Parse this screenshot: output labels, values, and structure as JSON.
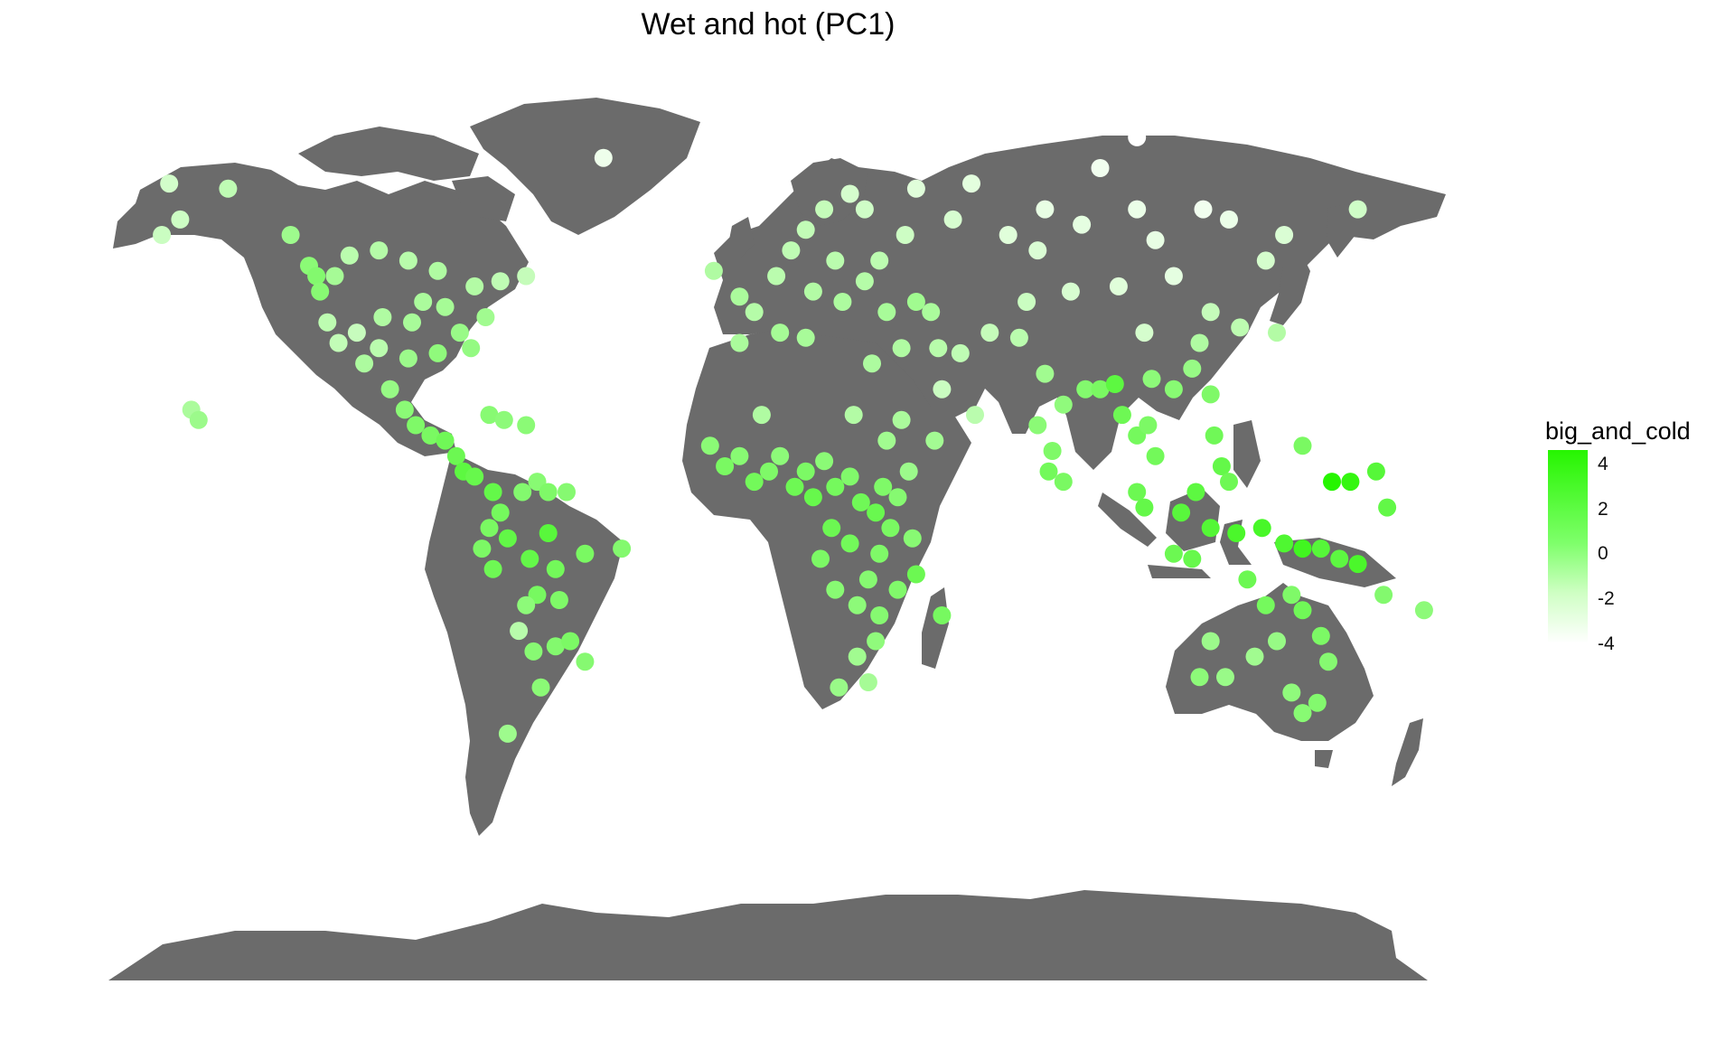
{
  "title": "Wet and hot (PC1)",
  "land_color": "#6b6b6b",
  "background_color": "#ffffff",
  "legend": {
    "title": "big_and_cold",
    "ticks": [
      "4",
      "2",
      "0",
      "-2",
      "-4"
    ],
    "tick_values": [
      4,
      2,
      0,
      -2,
      -4
    ],
    "range": [
      -4,
      4.6
    ],
    "color_low": "#ffffff",
    "color_high": "#26f500"
  },
  "chart_data": {
    "type": "scatter",
    "title": "Wet and hot (PC1)",
    "x_label": "",
    "y_label": "",
    "projection": "equirectangular world map (longitude, latitude)",
    "xlim": [
      -180,
      180
    ],
    "ylim": [
      -90,
      84
    ],
    "grid": false,
    "legend_placement": "right",
    "color_variable": "big_and_cold",
    "points": [
      {
        "lon": -163,
        "lat": 65,
        "v": -2.5
      },
      {
        "lon": -160,
        "lat": 58,
        "v": -2.3
      },
      {
        "lon": -147,
        "lat": 64,
        "v": -1.8
      },
      {
        "lon": -165,
        "lat": 55,
        "v": -2.2
      },
      {
        "lon": -130,
        "lat": 55,
        "v": -0.5
      },
      {
        "lon": -125,
        "lat": 49,
        "v": 0.3
      },
      {
        "lon": -123,
        "lat": 47,
        "v": 0.6
      },
      {
        "lon": -122,
        "lat": 44,
        "v": 0.4
      },
      {
        "lon": -118,
        "lat": 47,
        "v": -0.8
      },
      {
        "lon": -114,
        "lat": 51,
        "v": -1.6
      },
      {
        "lon": -106,
        "lat": 52,
        "v": -1.4
      },
      {
        "lon": -98,
        "lat": 50,
        "v": -1.5
      },
      {
        "lon": -90,
        "lat": 48,
        "v": -1.2
      },
      {
        "lon": -80,
        "lat": 45,
        "v": -1.3
      },
      {
        "lon": -73,
        "lat": 46,
        "v": -1.8
      },
      {
        "lon": -66,
        "lat": 47,
        "v": -2.0
      },
      {
        "lon": -120,
        "lat": 38,
        "v": -1.7
      },
      {
        "lon": -117,
        "lat": 34,
        "v": -1.9
      },
      {
        "lon": -112,
        "lat": 36,
        "v": -2.1
      },
      {
        "lon": -105,
        "lat": 39,
        "v": -1.2
      },
      {
        "lon": -97,
        "lat": 38,
        "v": -0.9
      },
      {
        "lon": -94,
        "lat": 42,
        "v": -1.0
      },
      {
        "lon": -88,
        "lat": 41,
        "v": -0.8
      },
      {
        "lon": -84,
        "lat": 36,
        "v": -0.3
      },
      {
        "lon": -81,
        "lat": 33,
        "v": -0.1
      },
      {
        "lon": -77,
        "lat": 39,
        "v": -0.6
      },
      {
        "lon": -90,
        "lat": 32,
        "v": 0.1
      },
      {
        "lon": -98,
        "lat": 31,
        "v": -0.4
      },
      {
        "lon": -106,
        "lat": 33,
        "v": -1.6
      },
      {
        "lon": -110,
        "lat": 30,
        "v": -1.1
      },
      {
        "lon": -103,
        "lat": 25,
        "v": -0.2
      },
      {
        "lon": -99,
        "lat": 21,
        "v": 0.3
      },
      {
        "lon": -96,
        "lat": 18,
        "v": 0.8
      },
      {
        "lon": -92,
        "lat": 16,
        "v": 1.0
      },
      {
        "lon": -88,
        "lat": 15,
        "v": 1.4
      },
      {
        "lon": -85,
        "lat": 12,
        "v": 1.6
      },
      {
        "lon": -83,
        "lat": 9,
        "v": 2.2
      },
      {
        "lon": -80,
        "lat": 8,
        "v": 1.8
      },
      {
        "lon": -76,
        "lat": 20,
        "v": 0.4
      },
      {
        "lon": -72,
        "lat": 19,
        "v": 0.2
      },
      {
        "lon": -66,
        "lat": 18,
        "v": 0.3
      },
      {
        "lon": -157,
        "lat": 21,
        "v": -1.0
      },
      {
        "lon": -155,
        "lat": 19,
        "v": -0.4
      },
      {
        "lon": -75,
        "lat": 5,
        "v": 1.9
      },
      {
        "lon": -73,
        "lat": 1,
        "v": 1.2
      },
      {
        "lon": -76,
        "lat": -2,
        "v": 1.0
      },
      {
        "lon": -78,
        "lat": -6,
        "v": 0.9
      },
      {
        "lon": -75,
        "lat": -10,
        "v": 1.5
      },
      {
        "lon": -71,
        "lat": -4,
        "v": 2.0
      },
      {
        "lon": -67,
        "lat": 5,
        "v": 0.6
      },
      {
        "lon": -63,
        "lat": 7,
        "v": 0.4
      },
      {
        "lon": -60,
        "lat": 5,
        "v": 0.8
      },
      {
        "lon": -55,
        "lat": 5,
        "v": 0.5
      },
      {
        "lon": -65,
        "lat": -8,
        "v": 1.9
      },
      {
        "lon": -60,
        "lat": -3,
        "v": 2.4
      },
      {
        "lon": -58,
        "lat": -10,
        "v": 1.3
      },
      {
        "lon": -63,
        "lat": -15,
        "v": 1.1
      },
      {
        "lon": -57,
        "lat": -16,
        "v": 0.8
      },
      {
        "lon": -50,
        "lat": -7,
        "v": 1.0
      },
      {
        "lon": -40,
        "lat": -6,
        "v": 0.6
      },
      {
        "lon": -66,
        "lat": -17,
        "v": 0.2
      },
      {
        "lon": -68,
        "lat": -22,
        "v": -1.5
      },
      {
        "lon": -64,
        "lat": -26,
        "v": 0.4
      },
      {
        "lon": -58,
        "lat": -25,
        "v": 0.6
      },
      {
        "lon": -54,
        "lat": -24,
        "v": 0.9
      },
      {
        "lon": -50,
        "lat": -28,
        "v": 0.5
      },
      {
        "lon": -62,
        "lat": -33,
        "v": 0.3
      },
      {
        "lon": -71,
        "lat": -42,
        "v": -0.5
      },
      {
        "lon": -45,
        "lat": 70,
        "v": -3.5
      },
      {
        "lon": -15,
        "lat": 48,
        "v": -1.2
      },
      {
        "lon": -8,
        "lat": 43,
        "v": -1.0
      },
      {
        "lon": -4,
        "lat": 40,
        "v": -1.4
      },
      {
        "lon": 2,
        "lat": 47,
        "v": -1.6
      },
      {
        "lon": 6,
        "lat": 52,
        "v": -1.8
      },
      {
        "lon": 10,
        "lat": 56,
        "v": -1.9
      },
      {
        "lon": 15,
        "lat": 60,
        "v": -2.0
      },
      {
        "lon": 22,
        "lat": 63,
        "v": -2.6
      },
      {
        "lon": 26,
        "lat": 60,
        "v": -2.4
      },
      {
        "lon": 18,
        "lat": 50,
        "v": -1.6
      },
      {
        "lon": 12,
        "lat": 44,
        "v": -1.3
      },
      {
        "lon": 20,
        "lat": 42,
        "v": -1.1
      },
      {
        "lon": 26,
        "lat": 46,
        "v": -1.4
      },
      {
        "lon": 30,
        "lat": 50,
        "v": -1.7
      },
      {
        "lon": 37,
        "lat": 55,
        "v": -2.3
      },
      {
        "lon": 32,
        "lat": 40,
        "v": -0.9
      },
      {
        "lon": 40,
        "lat": 42,
        "v": -0.6
      },
      {
        "lon": 44,
        "lat": 40,
        "v": -1.0
      },
      {
        "lon": 36,
        "lat": 33,
        "v": -1.2
      },
      {
        "lon": 46,
        "lat": 33,
        "v": -1.5
      },
      {
        "lon": 52,
        "lat": 32,
        "v": -1.8
      },
      {
        "lon": 60,
        "lat": 36,
        "v": -2.0
      },
      {
        "lon": 47,
        "lat": 25,
        "v": -2.2
      },
      {
        "lon": 56,
        "lat": 20,
        "v": -1.6
      },
      {
        "lon": 45,
        "lat": 15,
        "v": -0.7
      },
      {
        "lon": -8,
        "lat": 34,
        "v": -1.0
      },
      {
        "lon": 3,
        "lat": 36,
        "v": -0.8
      },
      {
        "lon": 10,
        "lat": 35,
        "v": -0.9
      },
      {
        "lon": 28,
        "lat": 30,
        "v": -1.1
      },
      {
        "lon": 40,
        "lat": 64,
        "v": -3.0
      },
      {
        "lon": 50,
        "lat": 58,
        "v": -2.7
      },
      {
        "lon": 55,
        "lat": 65,
        "v": -3.1
      },
      {
        "lon": 65,
        "lat": 55,
        "v": -3.0
      },
      {
        "lon": 75,
        "lat": 60,
        "v": -3.3
      },
      {
        "lon": 73,
        "lat": 52,
        "v": -2.8
      },
      {
        "lon": 85,
        "lat": 57,
        "v": -3.2
      },
      {
        "lon": 90,
        "lat": 68,
        "v": -3.6
      },
      {
        "lon": 100,
        "lat": 60,
        "v": -3.4
      },
      {
        "lon": 105,
        "lat": 54,
        "v": -3.3
      },
      {
        "lon": 118,
        "lat": 60,
        "v": -3.6
      },
      {
        "lon": 125,
        "lat": 58,
        "v": -3.4
      },
      {
        "lon": 135,
        "lat": 50,
        "v": -2.6
      },
      {
        "lon": 140,
        "lat": 55,
        "v": -2.8
      },
      {
        "lon": 160,
        "lat": 60,
        "v": -2.4
      },
      {
        "lon": 100,
        "lat": 74,
        "v": -4.0
      },
      {
        "lon": 110,
        "lat": 47,
        "v": -3.2
      },
      {
        "lon": 95,
        "lat": 45,
        "v": -3.0
      },
      {
        "lon": 82,
        "lat": 44,
        "v": -2.7
      },
      {
        "lon": 70,
        "lat": 42,
        "v": -2.2
      },
      {
        "lon": 68,
        "lat": 35,
        "v": -1.6
      },
      {
        "lon": 75,
        "lat": 28,
        "v": -0.6
      },
      {
        "lon": 80,
        "lat": 22,
        "v": 0.1
      },
      {
        "lon": 73,
        "lat": 18,
        "v": 0.3
      },
      {
        "lon": 77,
        "lat": 13,
        "v": 0.8
      },
      {
        "lon": 76,
        "lat": 9,
        "v": 1.3
      },
      {
        "lon": 80,
        "lat": 7,
        "v": 1.0
      },
      {
        "lon": 86,
        "lat": 25,
        "v": 0.6
      },
      {
        "lon": 90,
        "lat": 25,
        "v": 1.0
      },
      {
        "lon": 94,
        "lat": 26,
        "v": 2.2
      },
      {
        "lon": 96,
        "lat": 20,
        "v": 1.5
      },
      {
        "lon": 100,
        "lat": 16,
        "v": 1.2
      },
      {
        "lon": 103,
        "lat": 18,
        "v": 0.9
      },
      {
        "lon": 105,
        "lat": 12,
        "v": 1.3
      },
      {
        "lon": 100,
        "lat": 5,
        "v": 1.6
      },
      {
        "lon": 102,
        "lat": 2,
        "v": 1.9
      },
      {
        "lon": 104,
        "lat": 27,
        "v": 0.2
      },
      {
        "lon": 110,
        "lat": 25,
        "v": 0.4
      },
      {
        "lon": 115,
        "lat": 29,
        "v": -0.2
      },
      {
        "lon": 120,
        "lat": 24,
        "v": 0.8
      },
      {
        "lon": 117,
        "lat": 34,
        "v": -1.2
      },
      {
        "lon": 102,
        "lat": 36,
        "v": -2.6
      },
      {
        "lon": 120,
        "lat": 40,
        "v": -2.0
      },
      {
        "lon": 128,
        "lat": 37,
        "v": -1.7
      },
      {
        "lon": 138,
        "lat": 36,
        "v": -1.3
      },
      {
        "lon": 121,
        "lat": 16,
        "v": 1.4
      },
      {
        "lon": 123,
        "lat": 10,
        "v": 1.9
      },
      {
        "lon": 125,
        "lat": 7,
        "v": 1.5
      },
      {
        "lon": 116,
        "lat": 5,
        "v": 2.2
      },
      {
        "lon": 112,
        "lat": 1,
        "v": 2.4
      },
      {
        "lon": 110,
        "lat": -7,
        "v": 1.6
      },
      {
        "lon": 115,
        "lat": -8,
        "v": 1.8
      },
      {
        "lon": 120,
        "lat": -2,
        "v": 2.6
      },
      {
        "lon": 127,
        "lat": -3,
        "v": 3.0
      },
      {
        "lon": 134,
        "lat": -2,
        "v": 3.1
      },
      {
        "lon": 140,
        "lat": -5,
        "v": 2.8
      },
      {
        "lon": 145,
        "lat": -6,
        "v": 3.4
      },
      {
        "lon": 150,
        "lat": -6,
        "v": 2.5
      },
      {
        "lon": 155,
        "lat": -8,
        "v": 2.2
      },
      {
        "lon": 160,
        "lat": -9,
        "v": 3.0
      },
      {
        "lon": 167,
        "lat": -15,
        "v": 0.6
      },
      {
        "lon": 178,
        "lat": -18,
        "v": 0.2
      },
      {
        "lon": 145,
        "lat": 14,
        "v": 1.0
      },
      {
        "lon": 153,
        "lat": 7,
        "v": 4.6
      },
      {
        "lon": 158,
        "lat": 7,
        "v": 4.0
      },
      {
        "lon": 165,
        "lat": 9,
        "v": 2.5
      },
      {
        "lon": 168,
        "lat": 2,
        "v": 2.0
      },
      {
        "lon": 130,
        "lat": -12,
        "v": 1.6
      },
      {
        "lon": 135,
        "lat": -17,
        "v": 1.2
      },
      {
        "lon": 142,
        "lat": -15,
        "v": 0.8
      },
      {
        "lon": 145,
        "lat": -18,
        "v": 1.4
      },
      {
        "lon": 150,
        "lat": -23,
        "v": 0.9
      },
      {
        "lon": 152,
        "lat": -28,
        "v": 0.5
      },
      {
        "lon": 138,
        "lat": -24,
        "v": -0.2
      },
      {
        "lon": 132,
        "lat": -27,
        "v": -0.6
      },
      {
        "lon": 120,
        "lat": -24,
        "v": -0.4
      },
      {
        "lon": 117,
        "lat": -31,
        "v": 0.2
      },
      {
        "lon": 124,
        "lat": -31,
        "v": -0.3
      },
      {
        "lon": 149,
        "lat": -36,
        "v": 0.6
      },
      {
        "lon": 145,
        "lat": -38,
        "v": 0.4
      },
      {
        "lon": 142,
        "lat": -34,
        "v": 0.1
      },
      {
        "lon": -16,
        "lat": 14,
        "v": 0.3
      },
      {
        "lon": -12,
        "lat": 10,
        "v": 1.0
      },
      {
        "lon": -8,
        "lat": 12,
        "v": 0.4
      },
      {
        "lon": -4,
        "lat": 7,
        "v": 1.3
      },
      {
        "lon": 0,
        "lat": 9,
        "v": 0.8
      },
      {
        "lon": 3,
        "lat": 12,
        "v": 0.2
      },
      {
        "lon": 7,
        "lat": 6,
        "v": 1.5
      },
      {
        "lon": 10,
        "lat": 9,
        "v": 0.9
      },
      {
        "lon": 12,
        "lat": 4,
        "v": 1.8
      },
      {
        "lon": 15,
        "lat": 11,
        "v": 0.3
      },
      {
        "lon": 18,
        "lat": 6,
        "v": 1.2
      },
      {
        "lon": 22,
        "lat": 8,
        "v": 0.7
      },
      {
        "lon": 25,
        "lat": 3,
        "v": 1.4
      },
      {
        "lon": 29,
        "lat": 1,
        "v": 1.7
      },
      {
        "lon": 31,
        "lat": 6,
        "v": 0.8
      },
      {
        "lon": 35,
        "lat": 4,
        "v": 0.5
      },
      {
        "lon": 38,
        "lat": 9,
        "v": -0.4
      },
      {
        "lon": 39,
        "lat": -4,
        "v": 0.4
      },
      {
        "lon": 33,
        "lat": -2,
        "v": 1.0
      },
      {
        "lon": 30,
        "lat": -7,
        "v": 0.8
      },
      {
        "lon": 27,
        "lat": -12,
        "v": 0.5
      },
      {
        "lon": 22,
        "lat": -5,
        "v": 1.3
      },
      {
        "lon": 17,
        "lat": -2,
        "v": 1.6
      },
      {
        "lon": 14,
        "lat": -8,
        "v": 0.9
      },
      {
        "lon": 18,
        "lat": -14,
        "v": 0.4
      },
      {
        "lon": 24,
        "lat": -17,
        "v": 0.2
      },
      {
        "lon": 30,
        "lat": -19,
        "v": 0.5
      },
      {
        "lon": 35,
        "lat": -14,
        "v": 0.7
      },
      {
        "lon": 40,
        "lat": -11,
        "v": 1.6
      },
      {
        "lon": 47,
        "lat": -19,
        "v": 1.1
      },
      {
        "lon": 29,
        "lat": -24,
        "v": 0.1
      },
      {
        "lon": 24,
        "lat": -27,
        "v": -0.6
      },
      {
        "lon": 19,
        "lat": -33,
        "v": -0.3
      },
      {
        "lon": 27,
        "lat": -32,
        "v": -0.8
      },
      {
        "lon": 32,
        "lat": 15,
        "v": -0.6
      },
      {
        "lon": 36,
        "lat": 19,
        "v": -1.0
      },
      {
        "lon": 23,
        "lat": 20,
        "v": -1.3
      },
      {
        "lon": -2,
        "lat": 20,
        "v": -1.2
      }
    ]
  }
}
